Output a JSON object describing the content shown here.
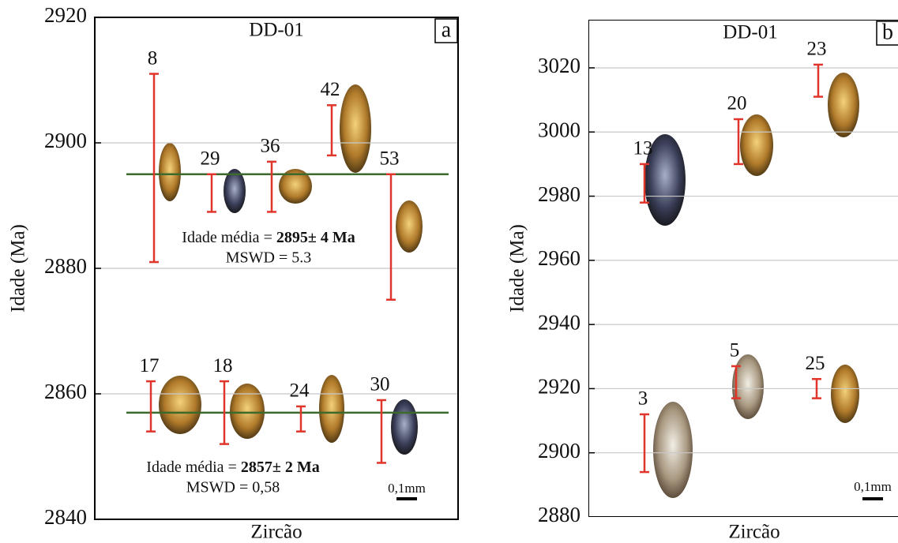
{
  "chart_data": [
    {
      "type": "errorbar",
      "title": "DD-01",
      "panel_label": "a",
      "ylabel": "Idade (Ma)",
      "xlabel": "Zircão",
      "ylim": [
        2840,
        2920
      ],
      "yticks": [
        2840,
        2860,
        2880,
        2900,
        2920
      ],
      "grid": true,
      "color": "#e0352b",
      "categories": [
        "8",
        "29",
        "36",
        "42",
        "53",
        "17",
        "18",
        "24",
        "30"
      ],
      "values": [
        2896,
        2892,
        2893,
        2902,
        2885,
        2858,
        2857,
        2856,
        2854
      ],
      "errors": [
        15,
        3,
        4,
        4,
        10,
        4,
        5,
        2,
        5
      ],
      "mean_lines": [
        2895,
        2857
      ],
      "mean_color": "#3b6a2c",
      "annotations": [
        {
          "text": "Idade média = ",
          "bold": "2895± 4 Ma",
          "second": "MSWD = 5.3"
        },
        {
          "text": "Idade média = ",
          "bold": "2857± 2 Ma",
          "second": "MSWD = 0,58"
        }
      ],
      "scale_label": "0,1mm"
    },
    {
      "type": "errorbar",
      "title": "DD-01",
      "panel_label": "b",
      "ylabel": "Idade (Ma)",
      "xlabel": "Zircão",
      "ylim": [
        2880,
        3035
      ],
      "yticks": [
        2880,
        2900,
        2920,
        2940,
        2960,
        2980,
        3000,
        3020
      ],
      "grid": true,
      "color": "#e0352b",
      "categories": [
        "13",
        "20",
        "23",
        "3",
        "5",
        "25"
      ],
      "values": [
        2984,
        2997,
        3016,
        2903,
        2922,
        2920
      ],
      "errors": [
        6,
        7,
        5,
        9,
        5,
        3
      ],
      "scale_label": "0,1mm"
    }
  ]
}
